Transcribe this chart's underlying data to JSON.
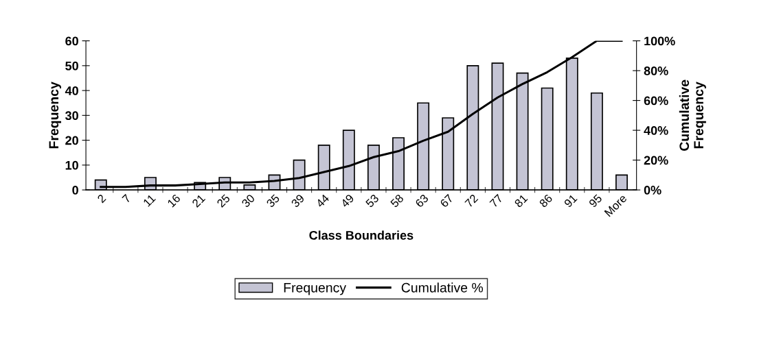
{
  "chart_data": {
    "type": "bar",
    "xlabel": "Class Boundaries",
    "ylabel": "Frequency",
    "y2label": "Cumulative\nFrequency",
    "categories": [
      "2",
      "7",
      "11",
      "16",
      "21",
      "25",
      "30",
      "35",
      "39",
      "44",
      "49",
      "53",
      "58",
      "63",
      "67",
      "72",
      "77",
      "81",
      "86",
      "91",
      "95",
      "More"
    ],
    "series": [
      {
        "name": "Frequency",
        "color": "#c4c4d4",
        "values": [
          4,
          null,
          5,
          null,
          3,
          5,
          2,
          6,
          12,
          18,
          24,
          18,
          21,
          35,
          29,
          50,
          51,
          47,
          41,
          53,
          39,
          6
        ]
      },
      {
        "name": "Cumulative %",
        "type": "line",
        "axis": "y2",
        "color": "#000000",
        "values": [
          2,
          2,
          3,
          3,
          4,
          5,
          5,
          6,
          8,
          12,
          16,
          22,
          26,
          33,
          39,
          51,
          62,
          71,
          79,
          89,
          100,
          100
        ]
      }
    ],
    "ylim": [
      0,
      60
    ],
    "yticks": [
      0,
      10,
      20,
      30,
      40,
      50,
      60
    ],
    "y2lim": [
      0,
      100
    ],
    "y2ticks": [
      {
        "value": 0,
        "label": "0%"
      },
      {
        "value": 20,
        "label": "20%"
      },
      {
        "value": 40,
        "label": "40%"
      },
      {
        "value": 60,
        "label": "60%"
      },
      {
        "value": 80,
        "label": "80%"
      },
      {
        "value": 100,
        "label": "100%"
      }
    ],
    "legend": "bottom",
    "grid": false,
    "marker": "none",
    "line_style": "solid"
  }
}
